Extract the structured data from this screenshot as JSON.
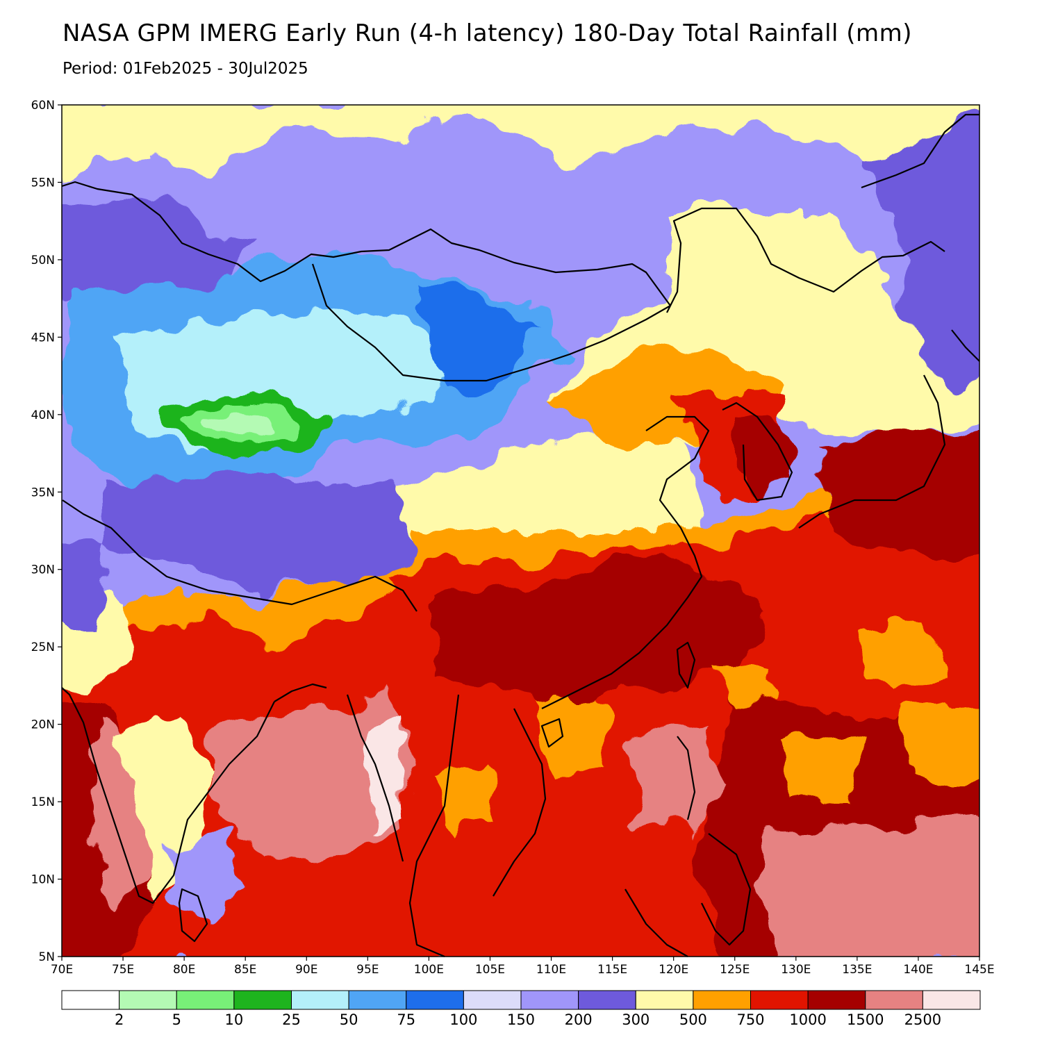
{
  "title": "NASA GPM IMERG Early Run (4-h latency) 180-Day Total Rainfall (mm)",
  "subtitle": "Period: 01Feb2025 - 30Jul2025",
  "map": {
    "lon_range": [
      70,
      145
    ],
    "lat_range": [
      5,
      60
    ],
    "lat_ticks": [
      "60N",
      "55N",
      "50N",
      "45N",
      "40N",
      "35N",
      "30N",
      "25N",
      "20N",
      "15N",
      "10N",
      "5N"
    ],
    "lon_ticks": [
      "70E",
      "75E",
      "80E",
      "85E",
      "90E",
      "95E",
      "100E",
      "105E",
      "110E",
      "115E",
      "120E",
      "125E",
      "130E",
      "135E",
      "140E",
      "145E"
    ]
  },
  "colorbar": {
    "colors": [
      "#ffffff",
      "#b4fab4",
      "#78f078",
      "#1eb41e",
      "#b4f0fa",
      "#50a5f5",
      "#1e6eeb",
      "#dcdcfa",
      "#a096fa",
      "#6e5adc",
      "#fffaaa",
      "#ffa000",
      "#e11400",
      "#a50000",
      "#e68282",
      "#fae6e6"
    ],
    "labels": [
      "2",
      "5",
      "10",
      "25",
      "50",
      "75",
      "100",
      "150",
      "200",
      "300",
      "500",
      "750",
      "1000",
      "1500",
      "2500"
    ]
  }
}
